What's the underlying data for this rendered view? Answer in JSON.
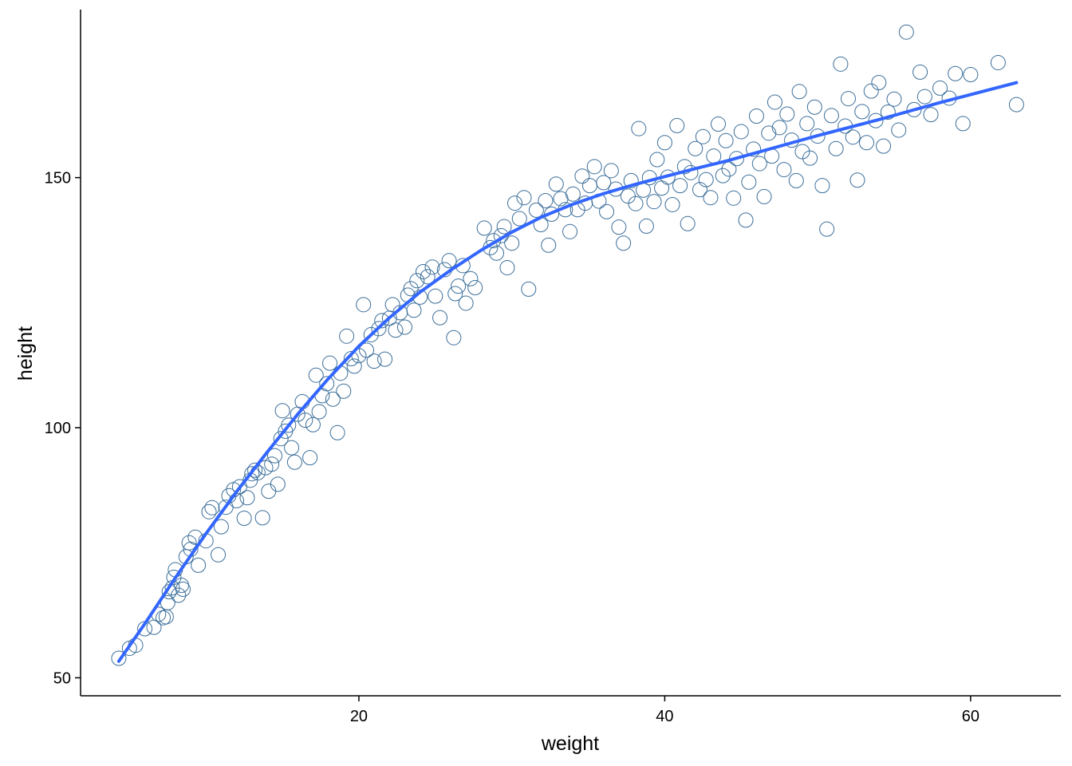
{
  "chart_data": {
    "type": "scatter",
    "title": "",
    "xlabel": "weight",
    "ylabel": "height",
    "xlim": [
      1.8,
      65.9
    ],
    "ylim": [
      46.4,
      183.6
    ],
    "x_ticks": [
      20,
      40,
      60
    ],
    "x_tick_labels": [
      "20",
      "40",
      "60"
    ],
    "y_ticks": [
      50,
      100,
      150
    ],
    "y_tick_labels": [
      "50",
      "100",
      "150"
    ],
    "grid": false,
    "legend": "none",
    "colors": {
      "points": "#3B6E9A",
      "fit_line": "#3366FF",
      "axis": "#000000"
    },
    "series": [
      {
        "kind": "points",
        "marker": "open-circle",
        "points": [
          [
            4.3,
            53.9
          ],
          [
            5.0,
            55.9
          ],
          [
            5.4,
            56.5
          ],
          [
            6.0,
            59.8
          ],
          [
            6.6,
            60.1
          ],
          [
            6.9,
            62.7
          ],
          [
            7.2,
            62.0
          ],
          [
            7.4,
            62.2
          ],
          [
            7.5,
            65.0
          ],
          [
            7.6,
            67.2
          ],
          [
            7.8,
            68.0
          ],
          [
            7.9,
            70.1
          ],
          [
            8.0,
            71.6
          ],
          [
            8.2,
            66.5
          ],
          [
            8.4,
            68.5
          ],
          [
            8.5,
            67.7
          ],
          [
            8.7,
            74.2
          ],
          [
            8.9,
            77.0
          ],
          [
            9.0,
            75.7
          ],
          [
            9.3,
            78.1
          ],
          [
            9.5,
            72.5
          ],
          [
            10.0,
            77.4
          ],
          [
            10.2,
            83.2
          ],
          [
            10.4,
            84.0
          ],
          [
            10.8,
            74.6
          ],
          [
            11.0,
            80.2
          ],
          [
            11.3,
            84.1
          ],
          [
            11.5,
            86.4
          ],
          [
            11.8,
            87.6
          ],
          [
            12.0,
            85.4
          ],
          [
            12.2,
            88.2
          ],
          [
            12.5,
            81.9
          ],
          [
            12.7,
            86.0
          ],
          [
            12.9,
            89.5
          ],
          [
            13.0,
            90.8
          ],
          [
            13.2,
            91.5
          ],
          [
            13.4,
            91.0
          ],
          [
            13.7,
            82.0
          ],
          [
            13.9,
            92.0
          ],
          [
            14.1,
            87.3
          ],
          [
            14.3,
            92.7
          ],
          [
            14.5,
            94.4
          ],
          [
            14.7,
            88.7
          ],
          [
            14.9,
            97.8
          ],
          [
            15.0,
            103.4
          ],
          [
            15.2,
            99.3
          ],
          [
            15.4,
            100.5
          ],
          [
            15.6,
            96.0
          ],
          [
            15.8,
            93.1
          ],
          [
            16.0,
            102.7
          ],
          [
            16.3,
            105.2
          ],
          [
            16.5,
            101.5
          ],
          [
            16.8,
            94.0
          ],
          [
            17.0,
            100.6
          ],
          [
            17.2,
            110.5
          ],
          [
            17.4,
            103.2
          ],
          [
            17.6,
            106.4
          ],
          [
            17.9,
            108.8
          ],
          [
            18.1,
            112.9
          ],
          [
            18.3,
            105.7
          ],
          [
            18.6,
            99.0
          ],
          [
            18.8,
            110.9
          ],
          [
            19.0,
            107.3
          ],
          [
            19.2,
            118.3
          ],
          [
            19.5,
            113.8
          ],
          [
            19.7,
            112.3
          ],
          [
            20.0,
            114.4
          ],
          [
            20.3,
            124.6
          ],
          [
            20.5,
            115.5
          ],
          [
            20.8,
            118.6
          ],
          [
            21.0,
            113.3
          ],
          [
            21.3,
            119.8
          ],
          [
            21.5,
            121.4
          ],
          [
            21.7,
            113.7
          ],
          [
            22.0,
            121.9
          ],
          [
            22.2,
            124.6
          ],
          [
            22.4,
            119.5
          ],
          [
            22.7,
            123.0
          ],
          [
            23.0,
            120.1
          ],
          [
            23.2,
            126.5
          ],
          [
            23.4,
            127.8
          ],
          [
            23.6,
            123.5
          ],
          [
            23.8,
            129.4
          ],
          [
            24.0,
            126.1
          ],
          [
            24.2,
            131.2
          ],
          [
            24.5,
            130.2
          ],
          [
            24.8,
            132.1
          ],
          [
            25.0,
            126.3
          ],
          [
            25.3,
            122.0
          ],
          [
            25.6,
            131.6
          ],
          [
            25.9,
            133.4
          ],
          [
            26.2,
            118.0
          ],
          [
            26.3,
            126.8
          ],
          [
            26.5,
            128.3
          ],
          [
            26.8,
            132.4
          ],
          [
            27.0,
            124.9
          ],
          [
            27.3,
            129.8
          ],
          [
            27.6,
            128.0
          ],
          [
            28.2,
            139.9
          ],
          [
            28.6,
            136.0
          ],
          [
            28.8,
            137.4
          ],
          [
            29.0,
            134.9
          ],
          [
            29.3,
            138.4
          ],
          [
            29.5,
            140.2
          ],
          [
            29.7,
            132.0
          ],
          [
            30.0,
            136.9
          ],
          [
            30.2,
            144.9
          ],
          [
            30.5,
            141.8
          ],
          [
            30.8,
            146.0
          ],
          [
            31.1,
            127.7
          ],
          [
            31.6,
            143.5
          ],
          [
            31.9,
            140.6
          ],
          [
            32.2,
            145.4
          ],
          [
            32.4,
            136.5
          ],
          [
            32.6,
            142.7
          ],
          [
            32.9,
            148.7
          ],
          [
            33.2,
            145.8
          ],
          [
            33.5,
            143.6
          ],
          [
            33.8,
            139.2
          ],
          [
            34.0,
            146.7
          ],
          [
            34.3,
            143.6
          ],
          [
            34.6,
            150.3
          ],
          [
            34.8,
            144.9
          ],
          [
            35.1,
            148.4
          ],
          [
            35.4,
            152.2
          ],
          [
            35.7,
            145.3
          ],
          [
            36.0,
            149.0
          ],
          [
            36.2,
            143.2
          ],
          [
            36.5,
            151.4
          ],
          [
            36.8,
            147.7
          ],
          [
            37.0,
            140.1
          ],
          [
            37.3,
            136.9
          ],
          [
            37.6,
            146.3
          ],
          [
            37.8,
            149.4
          ],
          [
            38.1,
            144.8
          ],
          [
            38.3,
            159.8
          ],
          [
            38.6,
            147.5
          ],
          [
            38.8,
            140.3
          ],
          [
            39.0,
            150.0
          ],
          [
            39.3,
            145.2
          ],
          [
            39.5,
            153.6
          ],
          [
            39.8,
            147.9
          ],
          [
            40.0,
            157.0
          ],
          [
            40.2,
            150.1
          ],
          [
            40.5,
            144.6
          ],
          [
            40.8,
            160.4
          ],
          [
            41.0,
            148.4
          ],
          [
            41.3,
            152.2
          ],
          [
            41.5,
            140.8
          ],
          [
            41.7,
            151.0
          ],
          [
            42.0,
            155.8
          ],
          [
            42.3,
            147.6
          ],
          [
            42.5,
            158.2
          ],
          [
            42.7,
            149.6
          ],
          [
            43.0,
            146.0
          ],
          [
            43.2,
            154.3
          ],
          [
            43.5,
            160.7
          ],
          [
            43.8,
            150.4
          ],
          [
            44.0,
            157.4
          ],
          [
            44.2,
            151.7
          ],
          [
            44.5,
            145.9
          ],
          [
            44.7,
            153.8
          ],
          [
            45.0,
            159.2
          ],
          [
            45.3,
            141.5
          ],
          [
            45.5,
            149.1
          ],
          [
            45.8,
            155.7
          ],
          [
            46.0,
            162.3
          ],
          [
            46.2,
            152.8
          ],
          [
            46.5,
            146.2
          ],
          [
            46.8,
            158.9
          ],
          [
            47.0,
            154.3
          ],
          [
            47.2,
            165.1
          ],
          [
            47.5,
            160.0
          ],
          [
            47.8,
            151.6
          ],
          [
            48.0,
            162.7
          ],
          [
            48.3,
            157.5
          ],
          [
            48.6,
            149.4
          ],
          [
            48.8,
            167.2
          ],
          [
            49.0,
            155.2
          ],
          [
            49.3,
            160.8
          ],
          [
            49.5,
            153.9
          ],
          [
            49.8,
            164.1
          ],
          [
            50.0,
            158.3
          ],
          [
            50.3,
            148.4
          ],
          [
            50.6,
            139.7
          ],
          [
            50.9,
            162.4
          ],
          [
            51.2,
            155.8
          ],
          [
            51.5,
            172.7
          ],
          [
            51.8,
            160.3
          ],
          [
            52.0,
            165.8
          ],
          [
            52.3,
            158.1
          ],
          [
            52.6,
            149.5
          ],
          [
            52.9,
            163.2
          ],
          [
            53.2,
            157.0
          ],
          [
            53.5,
            167.3
          ],
          [
            53.8,
            161.4
          ],
          [
            54.0,
            169.0
          ],
          [
            54.3,
            156.3
          ],
          [
            54.6,
            163.1
          ],
          [
            55.0,
            165.7
          ],
          [
            55.3,
            159.5
          ],
          [
            55.8,
            179.1
          ],
          [
            56.3,
            163.6
          ],
          [
            56.7,
            171.1
          ],
          [
            57.0,
            166.2
          ],
          [
            57.4,
            162.6
          ],
          [
            58.0,
            167.9
          ],
          [
            58.6,
            165.9
          ],
          [
            59.0,
            170.8
          ],
          [
            59.5,
            160.8
          ],
          [
            60.0,
            170.6
          ],
          [
            61.8,
            173.0
          ],
          [
            63.0,
            164.6
          ]
        ]
      },
      {
        "kind": "line",
        "points": [
          [
            4.3,
            53.3
          ],
          [
            6.0,
            60.8
          ],
          [
            8.0,
            70.0
          ],
          [
            10.0,
            78.8
          ],
          [
            12.0,
            87.2
          ],
          [
            14.0,
            95.1
          ],
          [
            16.0,
            102.7
          ],
          [
            18.0,
            109.8
          ],
          [
            20.0,
            116.3
          ],
          [
            22.0,
            122.0
          ],
          [
            24.0,
            127.1
          ],
          [
            26.0,
            131.5
          ],
          [
            28.0,
            135.5
          ],
          [
            30.0,
            139.1
          ],
          [
            32.0,
            142.2
          ],
          [
            34.0,
            144.7
          ],
          [
            36.0,
            146.8
          ],
          [
            38.0,
            148.6
          ],
          [
            40.0,
            150.2
          ],
          [
            42.0,
            151.8
          ],
          [
            44.0,
            153.3
          ],
          [
            46.0,
            155.0
          ],
          [
            48.0,
            156.7
          ],
          [
            50.0,
            158.4
          ],
          [
            52.0,
            160.0
          ],
          [
            54.0,
            161.6
          ],
          [
            56.0,
            163.3
          ],
          [
            58.0,
            165.0
          ],
          [
            60.0,
            166.6
          ],
          [
            62.0,
            168.2
          ],
          [
            63.0,
            169.0
          ]
        ]
      }
    ]
  }
}
